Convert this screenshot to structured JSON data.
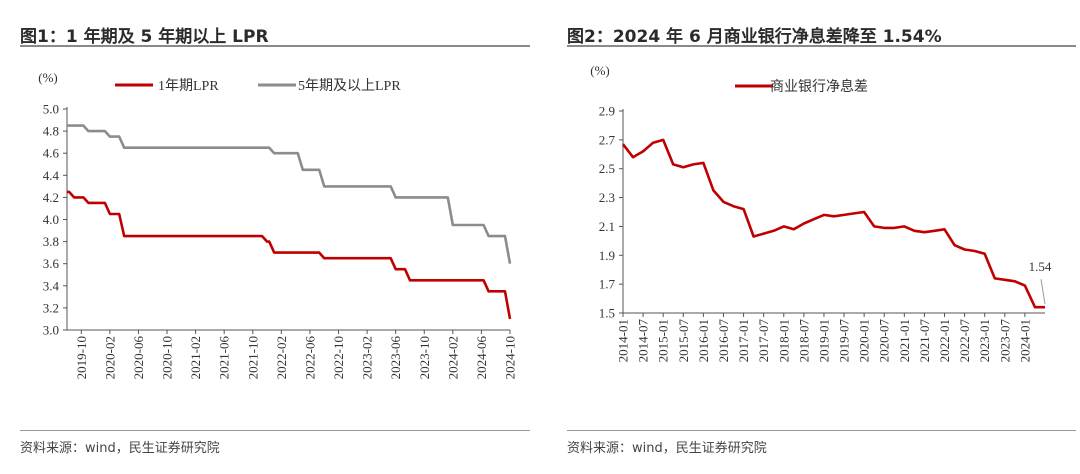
{
  "panels": [
    {
      "title": "图1：1 年期及 5 年期以上 LPR",
      "source": "资料来源：wind，民生证券研究院",
      "unit_label": "(%)",
      "chart_data": {
        "type": "line",
        "title": "图1：1 年期及 5 年期以上 LPR",
        "ylabel": "(%)",
        "ylim": [
          3.0,
          5.0
        ],
        "yticks": [
          3.0,
          3.2,
          3.4,
          3.6,
          3.8,
          4.0,
          4.2,
          4.4,
          4.6,
          4.8,
          5.0
        ],
        "x_tick_labels": [
          "2019-10",
          "2020-02",
          "2020-06",
          "2020-10",
          "2021-02",
          "2021-06",
          "2021-10",
          "2022-02",
          "2022-06",
          "2022-10",
          "2023-02",
          "2023-06",
          "2023-10",
          "2024-02",
          "2024-06",
          "2024-10"
        ],
        "grid": false,
        "legend_position": "top",
        "series": [
          {
            "name": "1年期LPR",
            "color": "#c00000",
            "points": [
              [
                "2019-08",
                4.25
              ],
              [
                "2019-09",
                4.2
              ],
              [
                "2019-11",
                4.15
              ],
              [
                "2020-02",
                4.05
              ],
              [
                "2020-04",
                3.85
              ],
              [
                "2021-12",
                3.8
              ],
              [
                "2022-01",
                3.7
              ],
              [
                "2022-08",
                3.65
              ],
              [
                "2023-06",
                3.55
              ],
              [
                "2023-08",
                3.45
              ],
              [
                "2024-07",
                3.35
              ],
              [
                "2024-10",
                3.1
              ]
            ]
          },
          {
            "name": "5年期及以上LPR",
            "color": "#8c8c8c",
            "points": [
              [
                "2019-08",
                4.85
              ],
              [
                "2019-09",
                4.85
              ],
              [
                "2019-11",
                4.8
              ],
              [
                "2020-02",
                4.75
              ],
              [
                "2020-04",
                4.65
              ],
              [
                "2022-01",
                4.6
              ],
              [
                "2022-05",
                4.45
              ],
              [
                "2022-08",
                4.3
              ],
              [
                "2023-06",
                4.2
              ],
              [
                "2024-02",
                3.95
              ],
              [
                "2024-07",
                3.85
              ],
              [
                "2024-10",
                3.6
              ]
            ]
          }
        ]
      }
    },
    {
      "title": "图2：2024 年 6 月商业银行净息差降至 1.54%",
      "source": "资料来源：wind，民生证券研究院",
      "unit_label": "(%)",
      "chart_data": {
        "type": "line",
        "title": "图2：2024 年 6 月商业银行净息差降至 1.54%",
        "ylabel": "(%)",
        "ylim": [
          1.5,
          2.9
        ],
        "yticks": [
          1.5,
          1.7,
          1.9,
          2.1,
          2.3,
          2.5,
          2.7,
          2.9
        ],
        "x_tick_labels": [
          "2014-01",
          "2014-07",
          "2015-01",
          "2015-07",
          "2016-01",
          "2016-07",
          "2017-01",
          "2017-07",
          "2018-01",
          "2018-07",
          "2019-01",
          "2019-07",
          "2020-01",
          "2020-07",
          "2021-01",
          "2021-07",
          "2022-01",
          "2022-07",
          "2023-01",
          "2023-07",
          "2024-01"
        ],
        "grid": false,
        "legend_position": "top",
        "annotation": "1.54",
        "series": [
          {
            "name": "商业银行净息差",
            "color": "#c00000",
            "points": [
              [
                "2014-01",
                2.67
              ],
              [
                "2014-04",
                2.58
              ],
              [
                "2014-07",
                2.62
              ],
              [
                "2014-10",
                2.68
              ],
              [
                "2015-01",
                2.7
              ],
              [
                "2015-04",
                2.53
              ],
              [
                "2015-07",
                2.51
              ],
              [
                "2015-10",
                2.53
              ],
              [
                "2016-01",
                2.54
              ],
              [
                "2016-04",
                2.35
              ],
              [
                "2016-07",
                2.27
              ],
              [
                "2016-10",
                2.24
              ],
              [
                "2017-01",
                2.22
              ],
              [
                "2017-04",
                2.03
              ],
              [
                "2017-07",
                2.05
              ],
              [
                "2017-10",
                2.07
              ],
              [
                "2018-01",
                2.1
              ],
              [
                "2018-04",
                2.08
              ],
              [
                "2018-07",
                2.12
              ],
              [
                "2018-10",
                2.15
              ],
              [
                "2019-01",
                2.18
              ],
              [
                "2019-04",
                2.17
              ],
              [
                "2019-07",
                2.18
              ],
              [
                "2019-10",
                2.19
              ],
              [
                "2020-01",
                2.2
              ],
              [
                "2020-04",
                2.1
              ],
              [
                "2020-07",
                2.09
              ],
              [
                "2020-10",
                2.09
              ],
              [
                "2021-01",
                2.1
              ],
              [
                "2021-04",
                2.07
              ],
              [
                "2021-07",
                2.06
              ],
              [
                "2021-10",
                2.07
              ],
              [
                "2022-01",
                2.08
              ],
              [
                "2022-04",
                1.97
              ],
              [
                "2022-07",
                1.94
              ],
              [
                "2022-10",
                1.93
              ],
              [
                "2023-01",
                1.91
              ],
              [
                "2023-04",
                1.74
              ],
              [
                "2023-07",
                1.73
              ],
              [
                "2023-10",
                1.72
              ],
              [
                "2024-01",
                1.69
              ],
              [
                "2024-04",
                1.54
              ],
              [
                "2024-07",
                1.54
              ]
            ]
          }
        ]
      }
    }
  ]
}
